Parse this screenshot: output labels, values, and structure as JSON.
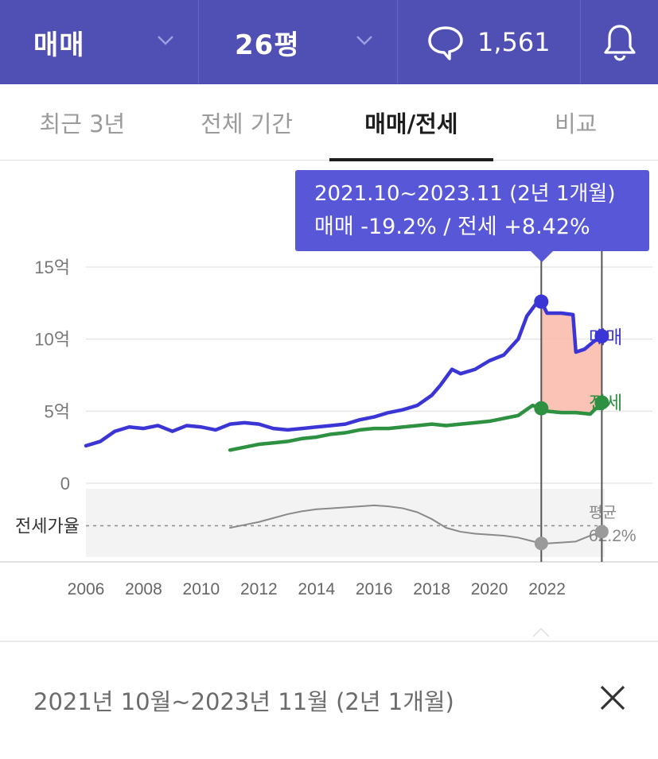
{
  "topbar": {
    "deal_type": "매매",
    "size": "26평",
    "comment_count": "1,561",
    "icons": [
      "chevron-down-icon",
      "chat-bubble-icon",
      "bell-icon"
    ]
  },
  "tabs": [
    {
      "label": "최근 3년",
      "active": false
    },
    {
      "label": "전체 기간",
      "active": false
    },
    {
      "label": "매매/전세",
      "active": true
    },
    {
      "label": "비교",
      "active": false
    }
  ],
  "tooltip": {
    "line1": "2021.10~2023.11 (2년 1개월)",
    "line2": "매매 -19.2%  /  전세 +8.42%"
  },
  "chart_data": {
    "type": "line",
    "x_ticks": [
      "2006",
      "2008",
      "2010",
      "2012",
      "2014",
      "2016",
      "2018",
      "2020",
      "2022"
    ],
    "y_ticks": [
      "0",
      "5억",
      "10억",
      "15억"
    ],
    "y_values": [
      0,
      5,
      10,
      15
    ],
    "ylim": [
      0,
      15
    ],
    "xlim": [
      2006.0,
      2024.0
    ],
    "series": [
      {
        "name": "매매",
        "color": "#3b35d6",
        "x": [
          2006.0,
          2006.5,
          2007.0,
          2007.5,
          2008.0,
          2008.5,
          2009.0,
          2009.5,
          2010.0,
          2010.5,
          2011.0,
          2011.5,
          2012.0,
          2012.5,
          2013.0,
          2013.5,
          2014.0,
          2014.5,
          2015.0,
          2015.5,
          2016.0,
          2016.5,
          2017.0,
          2017.5,
          2018.0,
          2018.3,
          2018.7,
          2019.0,
          2019.5,
          2020.0,
          2020.5,
          2021.0,
          2021.3,
          2021.6,
          2021.8,
          2022.0,
          2022.5,
          2022.9,
          2023.0,
          2023.3,
          2023.6,
          2023.9
        ],
        "values": [
          2.6,
          2.9,
          3.6,
          3.9,
          3.8,
          4.0,
          3.6,
          4.0,
          3.9,
          3.7,
          4.1,
          4.2,
          4.1,
          3.8,
          3.7,
          3.8,
          3.9,
          4.0,
          4.1,
          4.4,
          4.6,
          4.9,
          5.1,
          5.4,
          6.1,
          6.8,
          7.9,
          7.6,
          7.9,
          8.5,
          8.9,
          10.0,
          11.6,
          12.4,
          12.6,
          11.8,
          11.8,
          11.7,
          9.1,
          9.3,
          9.8,
          10.2
        ]
      },
      {
        "name": "전세",
        "color": "#2e9141",
        "x": [
          2011.0,
          2011.5,
          2012.0,
          2012.5,
          2013.0,
          2013.5,
          2014.0,
          2014.5,
          2015.0,
          2015.5,
          2016.0,
          2016.5,
          2017.0,
          2017.5,
          2018.0,
          2018.5,
          2019.0,
          2019.5,
          2020.0,
          2020.5,
          2021.0,
          2021.5,
          2021.8,
          2022.0,
          2022.5,
          2023.0,
          2023.5,
          2023.9
        ],
        "values": [
          2.3,
          2.5,
          2.7,
          2.8,
          2.9,
          3.1,
          3.2,
          3.4,
          3.5,
          3.7,
          3.8,
          3.8,
          3.9,
          4.0,
          4.1,
          4.0,
          4.1,
          4.2,
          4.3,
          4.5,
          4.7,
          5.4,
          5.2,
          5.0,
          4.9,
          4.9,
          4.8,
          5.6
        ]
      },
      {
        "name": "전세가율",
        "color": "#8a8a8a",
        "x": [
          2011.0,
          2011.5,
          2012.0,
          2012.5,
          2013.0,
          2013.5,
          2014.0,
          2014.5,
          2015.0,
          2015.5,
          2016.0,
          2016.5,
          2017.0,
          2017.5,
          2018.0,
          2018.5,
          2019.0,
          2019.5,
          2020.0,
          2020.5,
          2021.0,
          2021.4,
          2021.8,
          2022.0,
          2022.5,
          2023.0,
          2023.5,
          2023.9
        ],
        "values": [
          60.0,
          63.0,
          66.0,
          70.0,
          74.0,
          77.0,
          79.0,
          80.0,
          81.0,
          82.0,
          83.0,
          82.0,
          80.0,
          76.0,
          69.0,
          60.0,
          56.0,
          54.0,
          53.0,
          52.0,
          50.0,
          47.0,
          44.0,
          44.0,
          45.0,
          46.0,
          52.0,
          56.0
        ]
      }
    ],
    "series_labels": [
      "매매",
      "전세"
    ],
    "ratio_label": "전세가율",
    "avg_label_1": "평균",
    "avg_label_2": "62.2%",
    "ratio_avg": 62.2,
    "ratio_range": [
      30,
      100
    ],
    "highlight_range": [
      2021.8,
      2023.9
    ],
    "highlight_color": "#f9b8a8"
  },
  "bottom": {
    "range_text": "2021년 10월~2023년 11월 (2년 1개월)",
    "close_icon": "close-icon"
  }
}
